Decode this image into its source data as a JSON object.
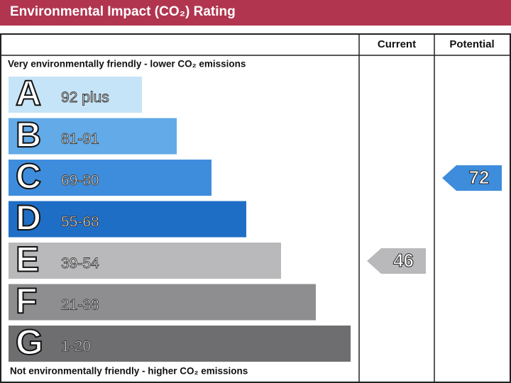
{
  "title": "Environmental Impact (CO₂) Rating",
  "columns": [
    "Current",
    "Potential"
  ],
  "top_note": "Very environmentally friendly - lower CO₂ emissions",
  "bottom_note": "Not environmentally friendly - higher CO₂ emissions",
  "bands": [
    {
      "letter": "A",
      "range": "92 plus",
      "color": "#c6e4f7"
    },
    {
      "letter": "B",
      "range": "81-91",
      "color": "#62aae8"
    },
    {
      "letter": "C",
      "range": "69-80",
      "color": "#3e8ddc"
    },
    {
      "letter": "D",
      "range": "55-68",
      "color": "#1f6ec6"
    },
    {
      "letter": "E",
      "range": "39-54",
      "color": "#b9b9bb"
    },
    {
      "letter": "F",
      "range": "21-38",
      "color": "#8e8e90"
    },
    {
      "letter": "G",
      "range": "1-20",
      "color": "#6e6e70"
    }
  ],
  "current": 46,
  "potential": 72
}
